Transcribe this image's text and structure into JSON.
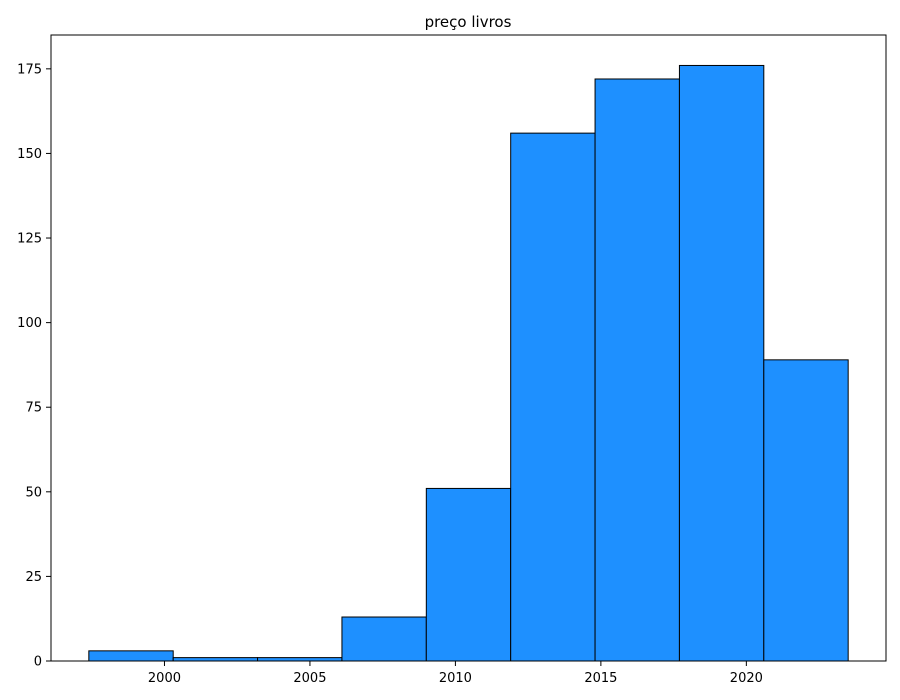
{
  "chart_data": {
    "type": "bar",
    "title": "preço livros",
    "xlabel": "",
    "ylabel": "",
    "bins": [
      {
        "start": 1997.4,
        "end": 2000.3,
        "count": 3
      },
      {
        "start": 2000.3,
        "end": 2003.2,
        "count": 1
      },
      {
        "start": 2003.2,
        "end": 2006.1,
        "count": 1
      },
      {
        "start": 2006.1,
        "end": 2009.0,
        "count": 13
      },
      {
        "start": 2009.0,
        "end": 2011.9,
        "count": 51
      },
      {
        "start": 2011.9,
        "end": 2014.8,
        "count": 156
      },
      {
        "start": 2014.8,
        "end": 2017.7,
        "count": 172
      },
      {
        "start": 2017.7,
        "end": 2020.6,
        "count": 176
      },
      {
        "start": 2020.6,
        "end": 2023.5,
        "count": 89
      }
    ],
    "xlim": [
      1996.1,
      2024.8
    ],
    "ylim": [
      0,
      185
    ],
    "xticks": [
      2000,
      2005,
      2010,
      2015,
      2020
    ],
    "yticks": [
      0,
      25,
      50,
      75,
      100,
      125,
      150,
      175
    ],
    "bar_color": "#1E90FF",
    "edge_color": "#000000",
    "grid": false
  }
}
